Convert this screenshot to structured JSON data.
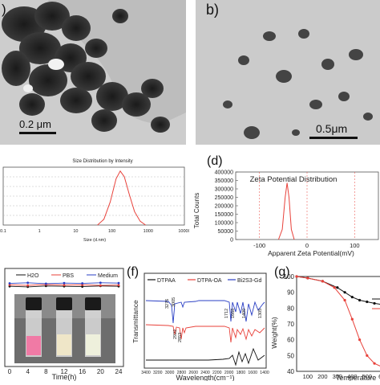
{
  "panels": {
    "a": {
      "label": ")",
      "scale_bar": "0.2 μm"
    },
    "b": {
      "label": "b)",
      "scale_bar": "0.5μm"
    },
    "c": {
      "title": "Size Distribution by Intensity",
      "xlabel": "Size (d.nm)",
      "x_ticks": [
        "0.1",
        "1",
        "10",
        "100",
        "1000",
        "10000"
      ]
    },
    "d": {
      "label": "(d)",
      "title": "Zeta Potential Distribution",
      "ylabel": "Total Counts",
      "xlabel": "Apparent Zeta Potential(mV)",
      "y_ticks": [
        "400000",
        "350000",
        "300000",
        "250000",
        "200000",
        "150000",
        "100000",
        "50000",
        "0"
      ],
      "x_ticks": [
        "-100",
        "0",
        "100"
      ]
    },
    "e": {
      "legend": [
        "H2O",
        "PBS",
        "Medium"
      ],
      "xlabel": "Time(h)",
      "x_ticks": [
        "0",
        "4",
        "8",
        "12",
        "16",
        "20",
        "24"
      ]
    },
    "f": {
      "label": "(f)",
      "legend": [
        "DTPAA",
        "DTPA-OA",
        "Bi2S3-Gd"
      ],
      "ylabel": "Transmittance",
      "xlabel": "Wavelength(cm⁻¹)",
      "x_ticks": [
        "3400",
        "3200",
        "3000",
        "2800",
        "2600",
        "2400",
        "2200",
        "2000",
        "1800",
        "1600",
        "1400"
      ],
      "peak_labels": [
        "3276",
        "3005",
        "2922",
        "2853",
        "1712",
        "1668",
        "1400",
        "1305"
      ]
    },
    "g": {
      "label": "(g)",
      "ylabel": "Weight(%)",
      "xlabel": "Temperature",
      "y_ticks": [
        "100",
        "90",
        "80",
        "70",
        "60",
        "50",
        "40"
      ],
      "x_ticks": [
        "100",
        "200",
        "300",
        "400",
        "500",
        "60"
      ]
    }
  },
  "colors": {
    "red": "#e8413a",
    "blue": "#2a3fc4",
    "black": "#111111",
    "pink": "#f07aa5",
    "bg": "#ffffff"
  },
  "chart_data": [
    {
      "panel": "c",
      "type": "line",
      "title": "Size Distribution by Intensity",
      "xlabel": "Size (d.nm)",
      "x_scale": "log",
      "xlim": [
        0.1,
        10000
      ],
      "series": [
        {
          "x": [
            40,
            60,
            90,
            130,
            170,
            220,
            300,
            420,
            600,
            850
          ],
          "values": [
            0,
            3,
            12,
            24,
            28,
            25,
            16,
            7,
            2,
            0
          ]
        }
      ]
    },
    {
      "panel": "d",
      "type": "line",
      "title": "Zeta Potential Distribution",
      "xlabel": "Apparent Zeta Potential(mV)",
      "ylabel": "Total Counts",
      "xlim": [
        -150,
        150
      ],
      "ylim": [
        0,
        400000
      ],
      "series": [
        {
          "x": [
            -60,
            -52,
            -46,
            -42,
            -38,
            -33,
            -27
          ],
          "values": [
            0,
            60000,
            250000,
            335000,
            250000,
            60000,
            0
          ]
        }
      ]
    },
    {
      "panel": "e",
      "type": "line",
      "xlabel": "Time(h)",
      "x": [
        0,
        4,
        8,
        12,
        16,
        20,
        24
      ],
      "series": [
        {
          "name": "H2O",
          "values": [
            0.5,
            0.48,
            0.51,
            0.5,
            0.49,
            0.51,
            0.5
          ]
        },
        {
          "name": "PBS",
          "values": [
            0.55,
            0.53,
            0.56,
            0.54,
            0.55,
            0.53,
            0.54
          ]
        },
        {
          "name": "Medium",
          "values": [
            0.6,
            0.62,
            0.59,
            0.61,
            0.6,
            0.62,
            0.61
          ]
        }
      ]
    },
    {
      "panel": "g",
      "type": "line",
      "xlabel": "Temperature",
      "ylabel": "Weight(%)",
      "ylim": [
        40,
        100
      ],
      "xlim": [
        25,
        620
      ],
      "series": [
        {
          "x": [
            25,
            100,
            200,
            300,
            350,
            400,
            450,
            500,
            550,
            620
          ],
          "values": [
            100,
            99,
            97,
            93,
            90,
            87,
            85,
            84,
            83,
            82
          ]
        },
        {
          "x": [
            25,
            100,
            200,
            280,
            350,
            400,
            450,
            500,
            550,
            620
          ],
          "values": [
            100,
            99,
            97,
            93,
            85,
            73,
            60,
            50,
            45,
            42
          ]
        }
      ]
    }
  ]
}
